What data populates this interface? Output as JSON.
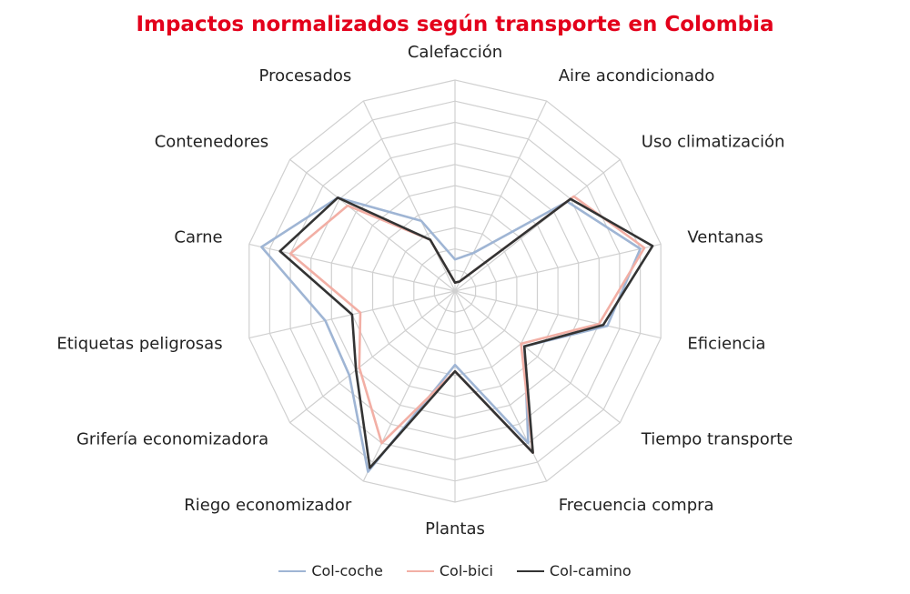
{
  "chart_data": {
    "type": "radar",
    "title": "Impactos normalizados según transporte en Colombia",
    "categories": [
      "Calefacción",
      "Aire acondicionado",
      "Uso climatización",
      "Ventanas",
      "Eficiencia",
      "Tiempo transporte",
      "Frecuencia compra",
      "Plantas",
      "Riego economizador",
      "Grifería economizadora",
      "Etiquetas peligrosas",
      "Carne",
      "Contenedores",
      "Procesados"
    ],
    "rlim": [
      0,
      1
    ],
    "rings": 10,
    "grid": true,
    "legend_position": "bottom",
    "series": [
      {
        "name": "Col-coche",
        "color": "#9fb5d4",
        "values": [
          0.15,
          0.2,
          0.68,
          0.9,
          0.74,
          0.42,
          0.8,
          0.35,
          0.95,
          0.64,
          0.63,
          0.94,
          0.71,
          0.37
        ]
      },
      {
        "name": "Col-bici",
        "color": "#f2afa5",
        "values": [
          0.04,
          0.05,
          0.72,
          0.92,
          0.7,
          0.4,
          0.85,
          0.38,
          0.8,
          0.58,
          0.46,
          0.8,
          0.65,
          0.27
        ]
      },
      {
        "name": "Col-camino",
        "color": "#333333",
        "values": [
          0.04,
          0.05,
          0.7,
          0.96,
          0.72,
          0.42,
          0.85,
          0.38,
          0.93,
          0.6,
          0.5,
          0.85,
          0.71,
          0.27
        ]
      }
    ]
  }
}
